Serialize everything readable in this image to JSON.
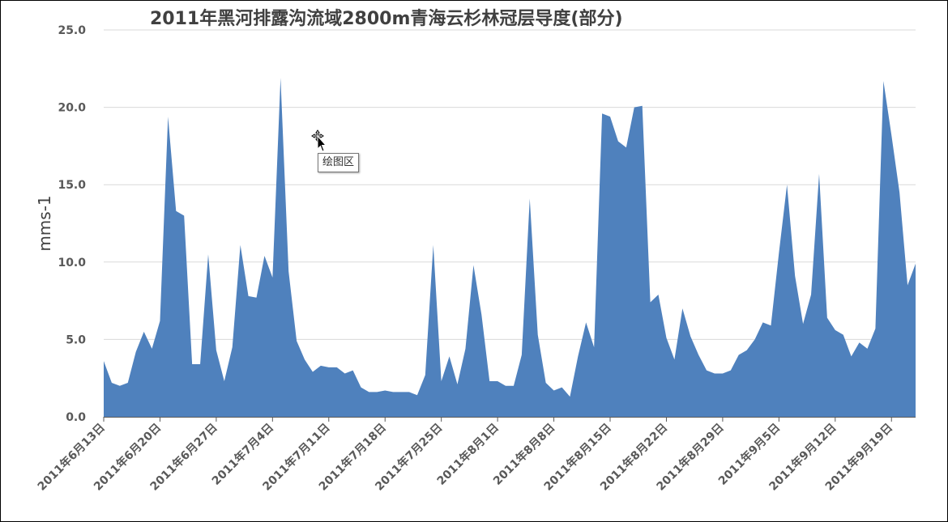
{
  "chart_data": {
    "type": "area",
    "title": "2011年黑河排露沟流域2800m青海云杉林冠层导度(部分)",
    "ylabel": "mms-1",
    "xlabel": "",
    "ylim": [
      0,
      25
    ],
    "yticks": [
      "0.0",
      "5.0",
      "10.0",
      "15.0",
      "20.0",
      "25.0"
    ],
    "grid": true,
    "legend": "none",
    "color": "#4f81bd",
    "start_date": "2011-06-13",
    "xtick_labels": [
      "2011年6月13日",
      "2011年6月20日",
      "2011年6月27日",
      "2011年7月4日",
      "2011年7月11日",
      "2011年7月18日",
      "2011年7月25日",
      "2011年8月1日",
      "2011年8月8日",
      "2011年8月15日",
      "2011年8月22日",
      "2011年8月29日",
      "2011年9月5日",
      "2011年9月12日",
      "2011年9月19日"
    ],
    "values": [
      3.6,
      2.2,
      2.0,
      2.2,
      4.2,
      5.5,
      4.4,
      6.2,
      19.4,
      13.3,
      13.0,
      3.4,
      3.4,
      10.5,
      4.3,
      2.3,
      4.5,
      11.1,
      7.8,
      7.7,
      10.4,
      9.0,
      21.9,
      9.4,
      4.9,
      3.7,
      2.9,
      3.3,
      3.2,
      3.2,
      2.8,
      3.0,
      1.9,
      1.6,
      1.6,
      1.7,
      1.6,
      1.6,
      1.6,
      1.4,
      2.7,
      11.1,
      2.3,
      3.9,
      2.1,
      4.4,
      9.8,
      6.6,
      2.3,
      2.3,
      2.0,
      2.0,
      4.0,
      14.1,
      5.3,
      2.2,
      1.7,
      1.9,
      1.3,
      3.9,
      6.1,
      4.5,
      19.6,
      19.4,
      17.8,
      17.4,
      20.0,
      20.1,
      7.4,
      7.9,
      5.1,
      3.7,
      7.0,
      5.2,
      4.0,
      3.0,
      2.8,
      2.8,
      3.0,
      4.0,
      4.3,
      5.0,
      6.1,
      5.9,
      10.6,
      15.0,
      9.1,
      6.0,
      7.9,
      15.7,
      6.4,
      5.6,
      5.3,
      3.9,
      4.8,
      4.4,
      5.7,
      21.7,
      18.2,
      14.5,
      8.5,
      9.9
    ]
  },
  "tooltip": {
    "label": "绘图区"
  }
}
